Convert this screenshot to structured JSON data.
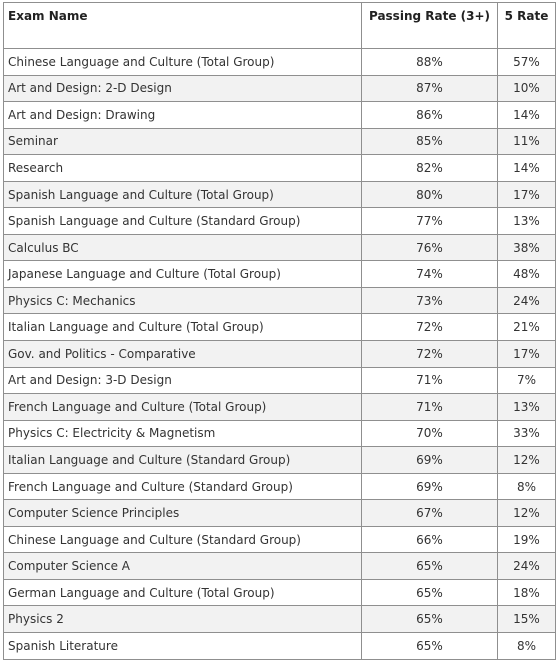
{
  "headers": {
    "exam_name": "Exam Name",
    "passing_rate": "Passing Rate (3+)",
    "five_rate": "5 Rate"
  },
  "rows": [
    {
      "name": "Chinese Language and Culture (Total Group)",
      "passing": "88%",
      "five": "57%"
    },
    {
      "name": "Art and Design: 2-D Design",
      "passing": "87%",
      "five": "10%"
    },
    {
      "name": "Art and Design: Drawing",
      "passing": "86%",
      "five": "14%"
    },
    {
      "name": "Seminar",
      "passing": "85%",
      "five": "11%"
    },
    {
      "name": "Research",
      "passing": "82%",
      "five": "14%"
    },
    {
      "name": "Spanish Language and Culture (Total Group)",
      "passing": "80%",
      "five": "17%"
    },
    {
      "name": "Spanish Language and Culture (Standard Group)",
      "passing": "77%",
      "five": "13%"
    },
    {
      "name": "Calculus BC",
      "passing": "76%",
      "five": "38%"
    },
    {
      "name": "Japanese Language and Culture (Total Group)",
      "passing": "74%",
      "five": "48%"
    },
    {
      "name": "Physics C: Mechanics",
      "passing": "73%",
      "five": "24%"
    },
    {
      "name": "Italian Language and Culture (Total Group)",
      "passing": "72%",
      "five": "21%"
    },
    {
      "name": "Gov. and Politics - Comparative",
      "passing": "72%",
      "five": "17%"
    },
    {
      "name": "Art and Design: 3-D Design",
      "passing": "71%",
      "five": "7%"
    },
    {
      "name": "French Language and Culture (Total Group)",
      "passing": "71%",
      "five": "13%"
    },
    {
      "name": "Physics C: Electricity & Magnetism",
      "passing": "70%",
      "five": "33%"
    },
    {
      "name": "Italian Language and Culture (Standard Group)",
      "passing": "69%",
      "five": "12%"
    },
    {
      "name": "French Language and Culture (Standard Group)",
      "passing": "69%",
      "five": "8%"
    },
    {
      "name": "Computer Science Principles",
      "passing": "67%",
      "five": "12%"
    },
    {
      "name": "Chinese Language and Culture (Standard Group)",
      "passing": "66%",
      "five": "19%"
    },
    {
      "name": "Computer Science A",
      "passing": "65%",
      "five": "24%"
    },
    {
      "name": "German Language and Culture (Total Group)",
      "passing": "65%",
      "five": "18%"
    },
    {
      "name": "Physics 2",
      "passing": "65%",
      "five": "15%"
    },
    {
      "name": "Spanish Literature",
      "passing": "65%",
      "five": "8%"
    }
  ]
}
